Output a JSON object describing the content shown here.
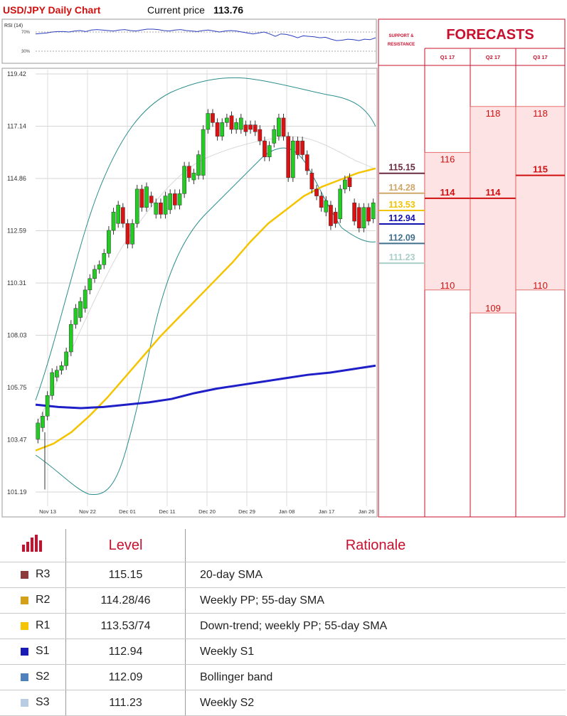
{
  "header": {
    "title": "USD/JPY Daily Chart",
    "price_label": "Current price",
    "price_value": "113.76"
  },
  "rsi": {
    "label": "RSI (14)",
    "level_high": "70%",
    "level_low": "30%",
    "values": [
      66,
      67,
      68,
      70,
      71,
      71,
      70,
      72,
      73,
      71,
      74,
      75,
      74,
      73,
      72,
      74,
      75,
      73,
      72,
      74,
      76,
      76,
      75,
      73,
      72,
      74,
      75,
      73,
      72,
      71,
      73,
      74,
      72,
      70,
      72,
      73,
      72,
      70,
      68,
      66,
      68,
      70,
      66,
      61,
      66,
      65,
      62,
      58,
      62,
      61,
      60,
      58,
      59,
      55,
      52,
      53,
      55,
      54,
      52,
      55,
      54,
      58
    ]
  },
  "forecasts": {
    "title": "FORECASTS",
    "sr_label_line1": "SUPPORT &",
    "sr_label_line2": "RESISTANCE",
    "quarters": [
      {
        "label": "Q1 17",
        "high": "116",
        "mid": "114",
        "low": "110"
      },
      {
        "label": "Q2 17",
        "high": "118",
        "mid": "114",
        "low": "109"
      },
      {
        "label": "Q3 17",
        "high": "118",
        "mid": "115",
        "low": "110"
      }
    ]
  },
  "sr_levels": [
    {
      "value": "115.15",
      "color": "#6b2a42"
    },
    {
      "value": "114.28",
      "color": "#cfa76b"
    },
    {
      "value": "113.53",
      "color": "#f2c400"
    },
    {
      "value": "112.94",
      "color": "#1010b0"
    },
    {
      "value": "112.09",
      "color": "#3f6f8a"
    },
    {
      "value": "111.23",
      "color": "#a9cfc9"
    }
  ],
  "chart_data": {
    "type": "candlestick",
    "y_ticks": [
      "119.42",
      "117.14",
      "114.86",
      "112.59",
      "110.31",
      "108.03",
      "105.75",
      "103.47",
      "101.19"
    ],
    "x_labels": [
      "Nov 13",
      "Nov 22",
      "Dec 01",
      "Dec 11",
      "Dec 20",
      "Dec 29",
      "Jan 08",
      "Jan 17",
      "Jan 26"
    ],
    "ylim": [
      101.19,
      119.42
    ],
    "candles": [
      [
        103.5,
        104.2
      ],
      [
        104.0,
        104.5
      ],
      [
        104.5,
        105.4
      ],
      [
        105.4,
        106.4
      ],
      [
        106.2,
        106.5
      ],
      [
        106.5,
        106.7
      ],
      [
        106.7,
        107.3
      ],
      [
        107.3,
        108.5
      ],
      [
        108.5,
        109.2
      ],
      [
        108.8,
        109.5
      ],
      [
        109.2,
        110.0
      ],
      [
        110.0,
        110.5
      ],
      [
        110.5,
        110.9
      ],
      [
        110.9,
        111.1
      ],
      [
        111.1,
        111.6
      ],
      [
        111.6,
        112.6
      ],
      [
        112.6,
        113.4
      ],
      [
        112.9,
        113.7
      ],
      [
        113.6,
        112.9
      ],
      [
        112.9,
        112.0
      ],
      [
        112.0,
        112.9
      ],
      [
        112.9,
        114.4
      ],
      [
        114.4,
        113.6
      ],
      [
        113.6,
        114.5
      ],
      [
        114.1,
        113.8
      ],
      [
        113.3,
        113.8
      ],
      [
        113.8,
        113.3
      ],
      [
        113.3,
        114.1
      ],
      [
        113.5,
        114.2
      ],
      [
        114.2,
        113.7
      ],
      [
        113.7,
        114.2
      ],
      [
        114.2,
        115.4
      ],
      [
        115.4,
        114.9
      ],
      [
        114.8,
        115.1
      ],
      [
        115.0,
        115.9
      ],
      [
        115.0,
        117.0
      ],
      [
        117.0,
        117.7
      ],
      [
        117.7,
        117.3
      ],
      [
        117.3,
        116.7
      ],
      [
        116.7,
        117.3
      ],
      [
        117.3,
        117.5
      ],
      [
        117.6,
        117.0
      ],
      [
        117.0,
        117.3
      ],
      [
        117.0,
        117.5
      ],
      [
        117.2,
        116.9
      ],
      [
        117.2,
        117.0
      ],
      [
        117.2,
        116.9
      ],
      [
        117.0,
        116.5
      ],
      [
        116.5,
        115.8
      ],
      [
        115.8,
        116.3
      ],
      [
        116.4,
        117.0
      ],
      [
        116.7,
        117.5
      ],
      [
        117.5,
        116.7
      ],
      [
        116.7,
        114.9
      ],
      [
        114.9,
        116.5
      ],
      [
        116.5,
        115.9
      ],
      [
        116.5,
        115.9
      ],
      [
        115.9,
        115.2
      ],
      [
        115.1,
        114.4
      ],
      [
        114.4,
        114.1
      ],
      [
        114.1,
        113.6
      ],
      [
        113.4,
        113.9
      ],
      [
        113.7,
        112.8
      ],
      [
        113.4,
        112.9
      ],
      [
        113.1,
        114.4
      ],
      [
        114.4,
        114.8
      ],
      [
        114.9,
        114.5
      ],
      [
        113.8,
        113.0
      ],
      [
        113.6,
        112.7
      ],
      [
        112.7,
        113.6
      ],
      [
        113.6,
        113.0
      ],
      [
        113.1,
        113.8
      ]
    ],
    "moving_averages": {
      "sma_55": [
        103.0,
        103.3,
        103.8,
        104.5,
        105.3,
        106.2,
        107.1,
        108.0,
        108.8,
        109.6,
        110.4,
        111.2,
        112.1,
        112.9,
        113.5,
        114.1,
        114.5,
        114.8,
        115.1,
        115.3
      ],
      "sma_200": [
        105.0,
        104.9,
        104.85,
        104.9,
        105.0,
        105.1,
        105.25,
        105.5,
        105.7,
        105.85,
        106.0,
        106.15,
        106.3,
        106.4,
        106.55,
        106.7
      ]
    }
  },
  "table": {
    "headers": {
      "level": "Level",
      "rationale": "Rationale"
    },
    "rows": [
      {
        "name": "R3",
        "level": "115.15",
        "rationale": "20-day SMA",
        "color": "#8c3a3a"
      },
      {
        "name": "R2",
        "level": "114.28/46",
        "rationale": "Weekly PP; 55-day SMA",
        "color": "#d4a017"
      },
      {
        "name": "R1",
        "level": "113.53/74",
        "rationale": "Down-trend; weekly PP; 55-day SMA",
        "color": "#f5c400"
      },
      {
        "name": "S1",
        "level": "112.94",
        "rationale": "Weekly S1",
        "color": "#1a1ab4"
      },
      {
        "name": "S2",
        "level": "112.09",
        "rationale": "Bollinger band",
        "color": "#4f81bd"
      },
      {
        "name": "S3",
        "level": "111.23",
        "rationale": "Weekly S2",
        "color": "#b8cce4"
      }
    ]
  }
}
